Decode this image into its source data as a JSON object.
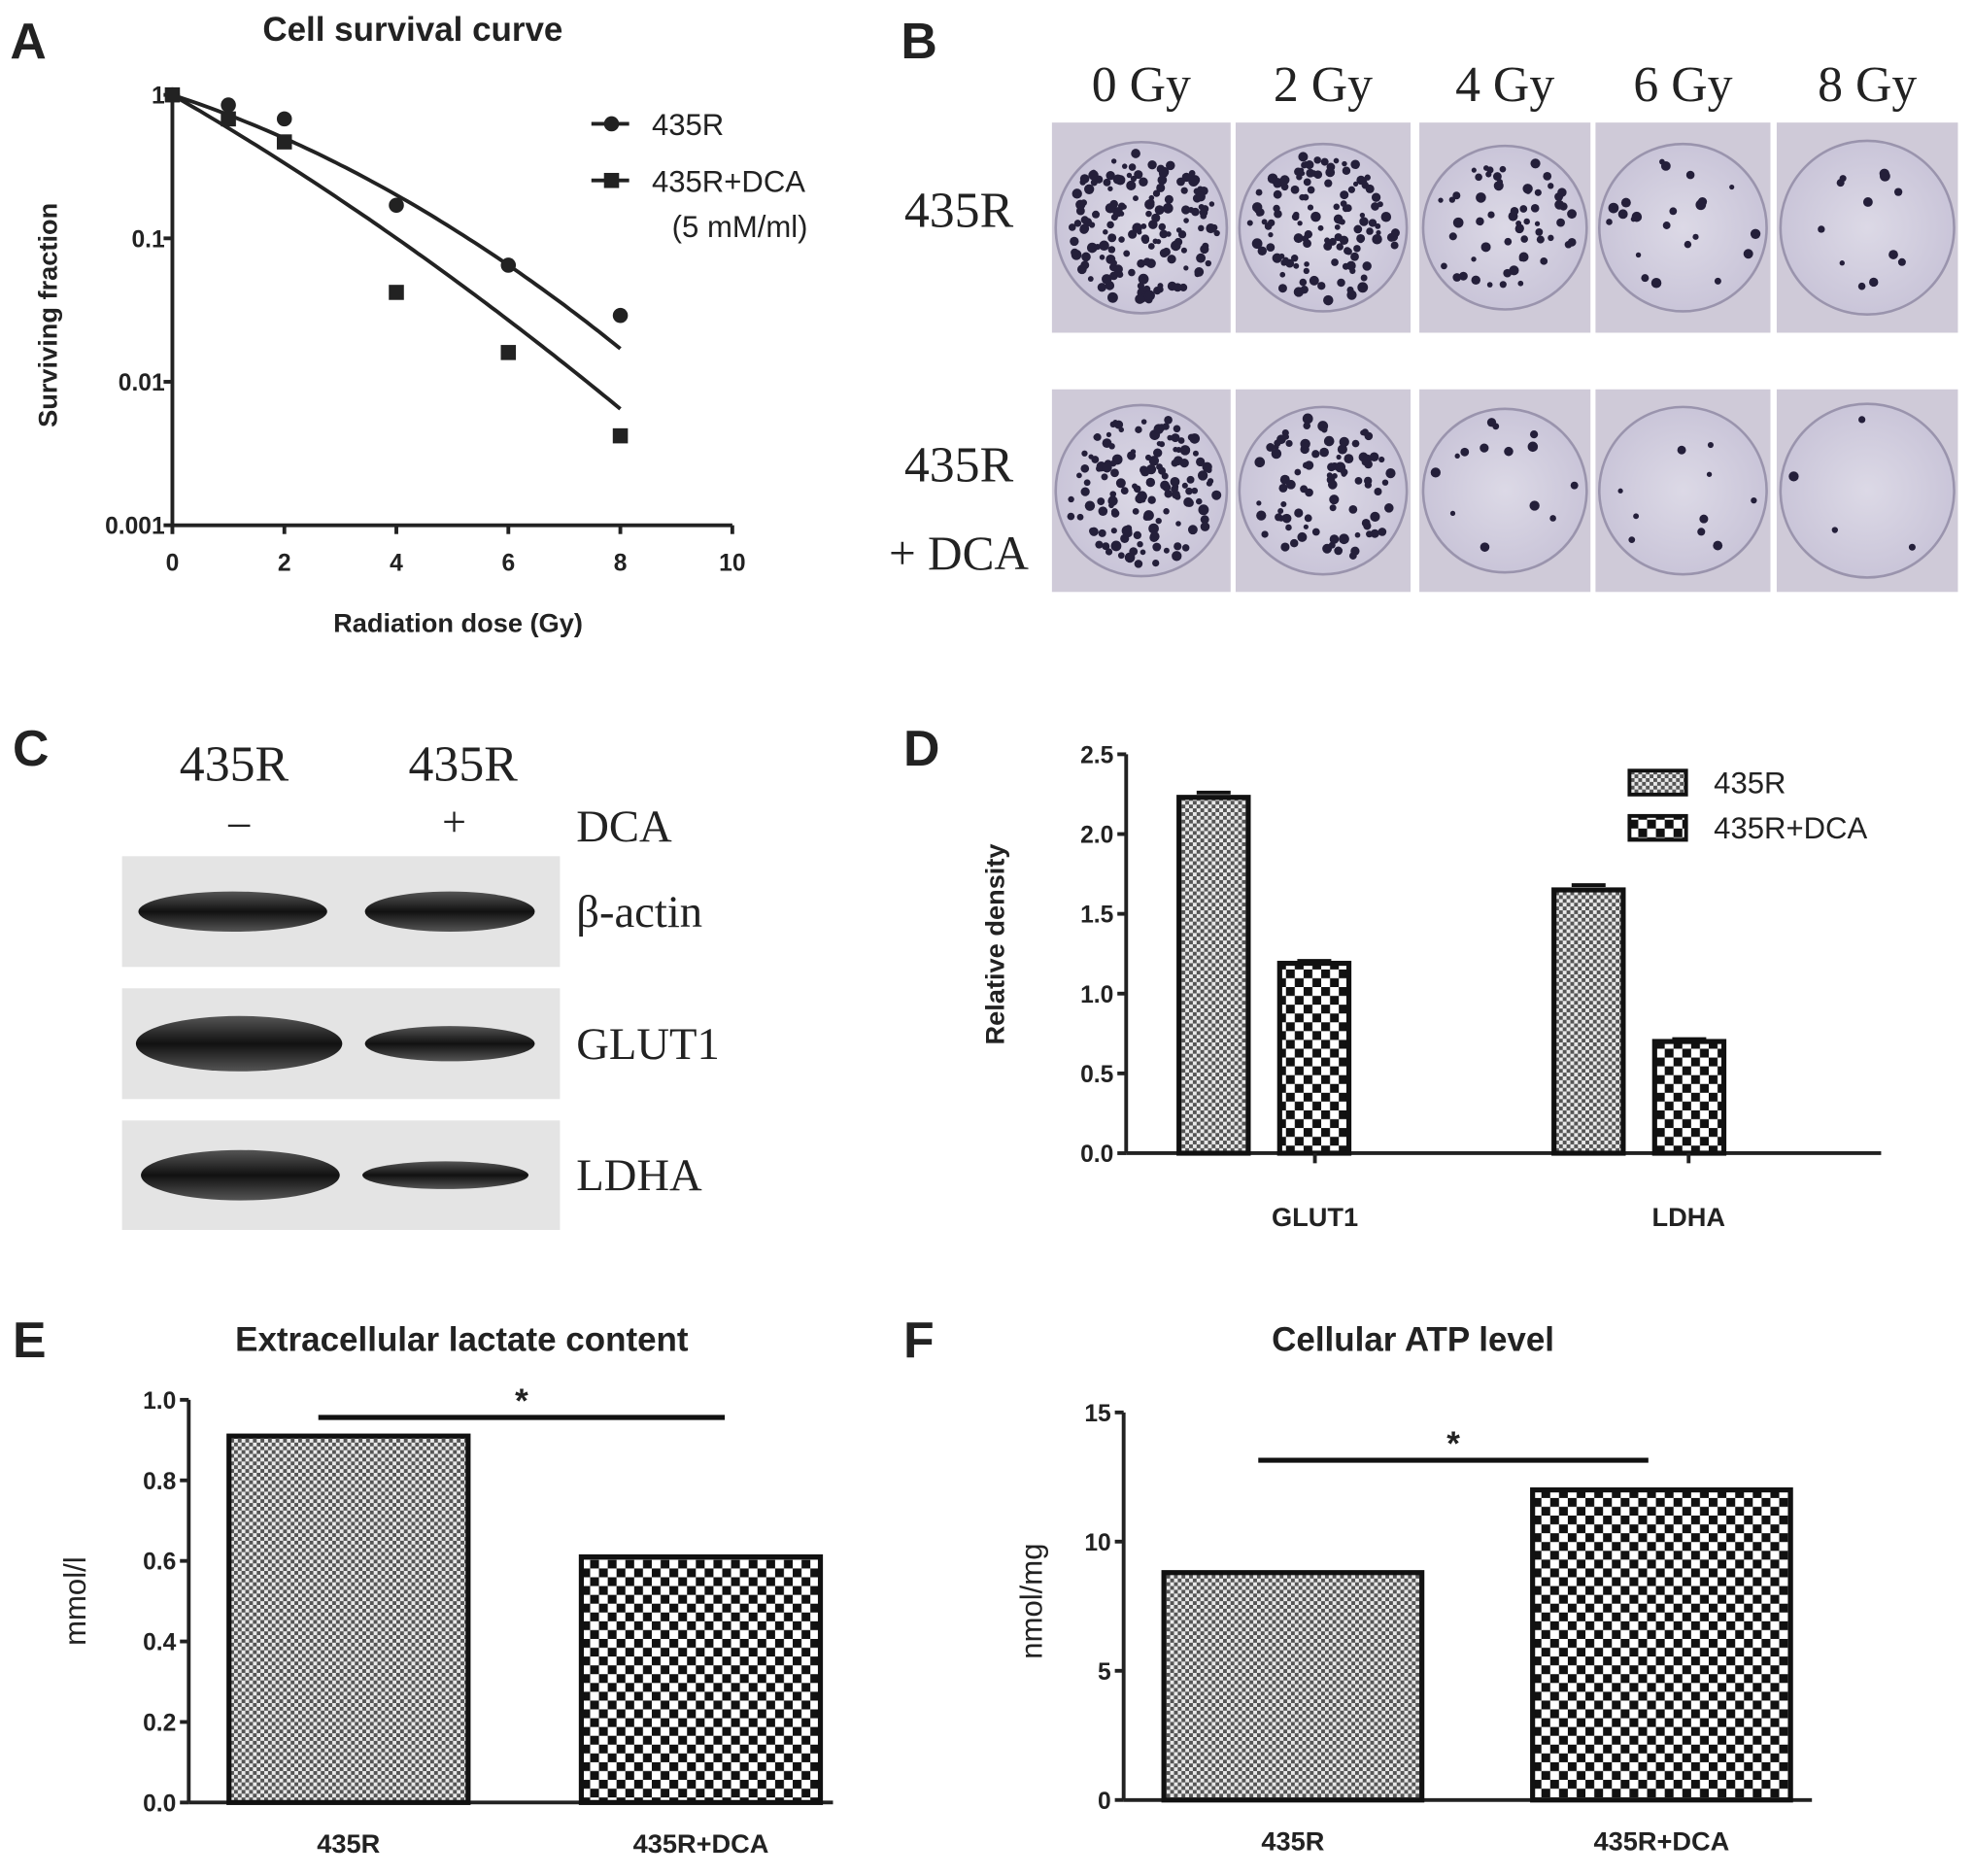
{
  "panels": {
    "a": "A",
    "b": "B",
    "c": "C",
    "d": "D",
    "e": "E",
    "f": "F"
  },
  "chart_data": [
    {
      "id": "A",
      "type": "scatter",
      "title": "Cell survival curve",
      "xlabel": "Radiation dose (Gy)",
      "ylabel": "Surviving fraction",
      "xlim": [
        0,
        10
      ],
      "ylim": [
        0.001,
        1
      ],
      "yscale": "log",
      "xticks": [
        "0",
        "2",
        "4",
        "6",
        "8",
        "10"
      ],
      "yticks": [
        "1",
        "0.1",
        "0.01",
        "0.001"
      ],
      "legend_position": "top-right",
      "series": [
        {
          "name": "435R",
          "marker": "circle",
          "x": [
            0,
            1,
            2,
            4,
            6,
            8
          ],
          "y": [
            1,
            0.85,
            0.68,
            0.17,
            0.065,
            0.029
          ],
          "fit": {
            "model": "linear-quadratic",
            "alpha": 0.294,
            "beta": 0.0269
          }
        },
        {
          "name": "435R+DCA",
          "name_line2": "(5 mM/ml)",
          "marker": "square",
          "x": [
            0,
            1,
            2,
            4,
            6,
            8
          ],
          "y": [
            1,
            0.68,
            0.47,
            0.042,
            0.016,
            0.0042
          ],
          "fit": {
            "model": "linear-quadratic",
            "alpha": 0.52,
            "beta": 0.01375
          }
        }
      ]
    },
    {
      "id": "D",
      "type": "bar",
      "ylabel": "Relative density",
      "ylim": [
        0,
        2.5
      ],
      "yticks": [
        "0.0",
        "0.5",
        "1.0",
        "1.5",
        "2.0",
        "2.5"
      ],
      "categories": [
        "GLUT1",
        "LDHA"
      ],
      "legend_position": "top-right",
      "series": [
        {
          "name": "435R",
          "pattern": "fine-checker",
          "values": [
            2.23,
            1.65
          ],
          "errors": [
            0.03,
            0.03
          ]
        },
        {
          "name": "435R+DCA",
          "pattern": "coarse-checker",
          "values": [
            1.19,
            0.7
          ],
          "errors": [
            0.015,
            0.015
          ]
        }
      ]
    },
    {
      "id": "E",
      "type": "bar",
      "title": "Extracellular lactate content",
      "ylabel": "mmol/l",
      "ylim": [
        0,
        1.0
      ],
      "yticks": [
        "0.0",
        "0.2",
        "0.4",
        "0.6",
        "0.8",
        "1.0"
      ],
      "categories": [
        "435R",
        "435R+DCA"
      ],
      "values": [
        0.91,
        0.61
      ],
      "patterns": [
        "fine-checker",
        "coarse-checker"
      ],
      "significance": "*"
    },
    {
      "id": "F",
      "type": "bar",
      "title": "Cellular ATP level",
      "ylabel": "nmol/mg",
      "ylim": [
        0,
        15
      ],
      "yticks": [
        "0",
        "5",
        "10",
        "15"
      ],
      "categories": [
        "435R",
        "435R+DCA"
      ],
      "values": [
        8.8,
        12.0
      ],
      "patterns": [
        "fine-checker",
        "coarse-checker"
      ],
      "significance": "*"
    }
  ],
  "colony_assay": {
    "doses": [
      "0 Gy",
      "2 Gy",
      "4 Gy",
      "6 Gy",
      "8 Gy"
    ],
    "rows": [
      {
        "label": "435R"
      },
      {
        "label": "435R",
        "label_line2": "+ DCA"
      }
    ]
  },
  "western_blot": {
    "lanes": [
      "435R",
      "435R"
    ],
    "treatment": [
      "–",
      "+"
    ],
    "treatment_label": "DCA",
    "proteins": [
      "β-actin",
      "GLUT1",
      "LDHA"
    ]
  }
}
